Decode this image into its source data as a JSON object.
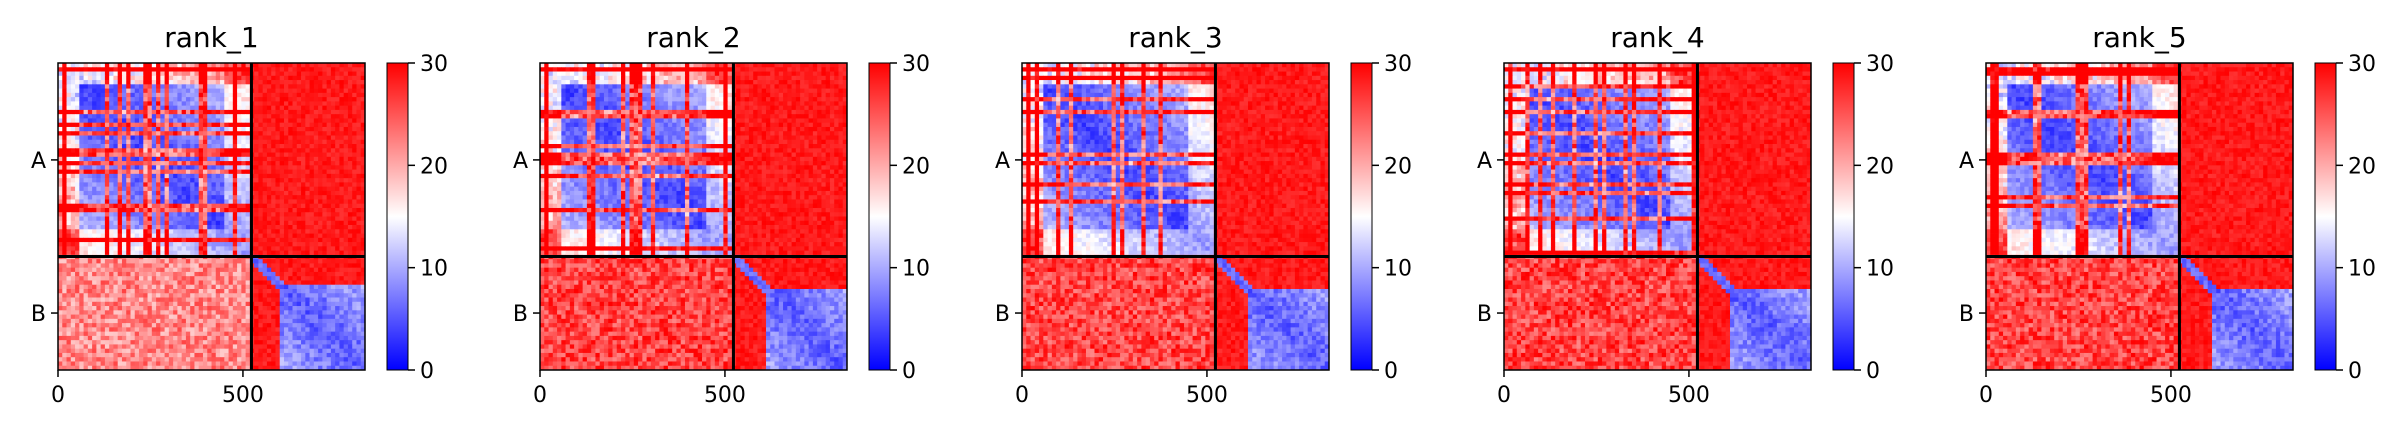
{
  "figure": {
    "colormap": {
      "low": "#0000ff",
      "mid": "#ffffff",
      "high": "#ff0000"
    },
    "frame_color": "#000000"
  },
  "chart_data": [
    {
      "type": "heatmap",
      "title": "rank_1",
      "xlim": [
        0,
        830
      ],
      "ylim": [
        830,
        0
      ],
      "x_ticks": [
        0,
        500
      ],
      "x_tick_labels": [
        "0",
        "500"
      ],
      "y_tick_positions": [
        262,
        676
      ],
      "y_tick_labels": [
        "A",
        "B"
      ],
      "chain_boundary": 523,
      "colorbar": {
        "min": 0,
        "max": 30,
        "ticks": [
          0,
          10,
          20,
          30
        ],
        "tick_labels": [
          "0",
          "10",
          "20",
          "30"
        ]
      },
      "chain_B_core_start": 605,
      "variant": 1
    },
    {
      "type": "heatmap",
      "title": "rank_2",
      "xlim": [
        0,
        830
      ],
      "ylim": [
        830,
        0
      ],
      "x_ticks": [
        0,
        500
      ],
      "x_tick_labels": [
        "0",
        "500"
      ],
      "y_tick_positions": [
        262,
        676
      ],
      "y_tick_labels": [
        "A",
        "B"
      ],
      "chain_boundary": 523,
      "colorbar": {
        "min": 0,
        "max": 30,
        "ticks": [
          0,
          10,
          20,
          30
        ],
        "tick_labels": [
          "0",
          "10",
          "20",
          "30"
        ]
      },
      "chain_B_core_start": 610,
      "variant": 2
    },
    {
      "type": "heatmap",
      "title": "rank_3",
      "xlim": [
        0,
        830
      ],
      "ylim": [
        830,
        0
      ],
      "x_ticks": [
        0,
        500
      ],
      "x_tick_labels": [
        "0",
        "500"
      ],
      "y_tick_positions": [
        262,
        676
      ],
      "y_tick_labels": [
        "A",
        "B"
      ],
      "chain_boundary": 523,
      "colorbar": {
        "min": 0,
        "max": 30,
        "ticks": [
          0,
          10,
          20,
          30
        ],
        "tick_labels": [
          "0",
          "10",
          "20",
          "30"
        ]
      },
      "chain_B_core_start": 612,
      "variant": 3
    },
    {
      "type": "heatmap",
      "title": "rank_4",
      "xlim": [
        0,
        830
      ],
      "ylim": [
        830,
        0
      ],
      "x_ticks": [
        0,
        500
      ],
      "x_tick_labels": [
        "0",
        "500"
      ],
      "y_tick_positions": [
        262,
        676
      ],
      "y_tick_labels": [
        "A",
        "B"
      ],
      "chain_boundary": 523,
      "colorbar": {
        "min": 0,
        "max": 30,
        "ticks": [
          0,
          10,
          20,
          30
        ],
        "tick_labels": [
          "0",
          "10",
          "20",
          "30"
        ]
      },
      "chain_B_core_start": 615,
      "variant": 4
    },
    {
      "type": "heatmap",
      "title": "rank_5",
      "xlim": [
        0,
        830
      ],
      "ylim": [
        830,
        0
      ],
      "x_ticks": [
        0,
        500
      ],
      "x_tick_labels": [
        "0",
        "500"
      ],
      "y_tick_positions": [
        262,
        676
      ],
      "y_tick_labels": [
        "A",
        "B"
      ],
      "chain_boundary": 523,
      "colorbar": {
        "min": 0,
        "max": 30,
        "ticks": [
          0,
          10,
          20,
          30
        ],
        "tick_labels": [
          "0",
          "10",
          "20",
          "30"
        ]
      },
      "chain_B_core_start": 615,
      "variant": 5
    }
  ]
}
